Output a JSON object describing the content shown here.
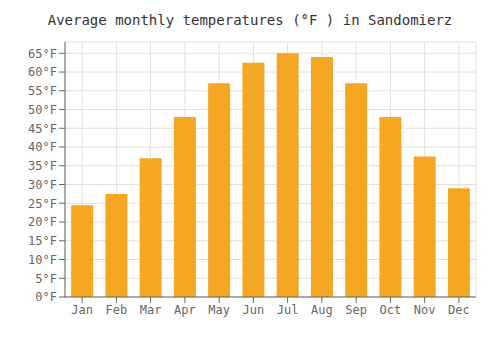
{
  "chart_data": {
    "type": "bar",
    "title": "Average monthly temperatures (°F ) in Sandomierz",
    "categories": [
      "Jan",
      "Feb",
      "Mar",
      "Apr",
      "May",
      "Jun",
      "Jul",
      "Aug",
      "Sep",
      "Oct",
      "Nov",
      "Dec"
    ],
    "values": [
      24.5,
      27.5,
      37.0,
      48.0,
      57.0,
      62.5,
      65.0,
      64.0,
      57.0,
      48.0,
      37.5,
      29.0
    ],
    "color": "#F5A623",
    "ylim": [
      0,
      68
    ],
    "yticks": [
      {
        "value": 0,
        "label": "0°F"
      },
      {
        "value": 5,
        "label": "5°F"
      },
      {
        "value": 10,
        "label": "10°F"
      },
      {
        "value": 15,
        "label": "15°F"
      },
      {
        "value": 20,
        "label": "20°F"
      },
      {
        "value": 25,
        "label": "25°F"
      },
      {
        "value": 30,
        "label": "30°F"
      },
      {
        "value": 35,
        "label": "35°F"
      },
      {
        "value": 40,
        "label": "40°F"
      },
      {
        "value": 45,
        "label": "45°F"
      },
      {
        "value": 50,
        "label": "50°F"
      },
      {
        "value": 55,
        "label": "55°F"
      },
      {
        "value": 60,
        "label": "60°F"
      },
      {
        "value": 65,
        "label": "65°F"
      }
    ],
    "grid": true
  }
}
